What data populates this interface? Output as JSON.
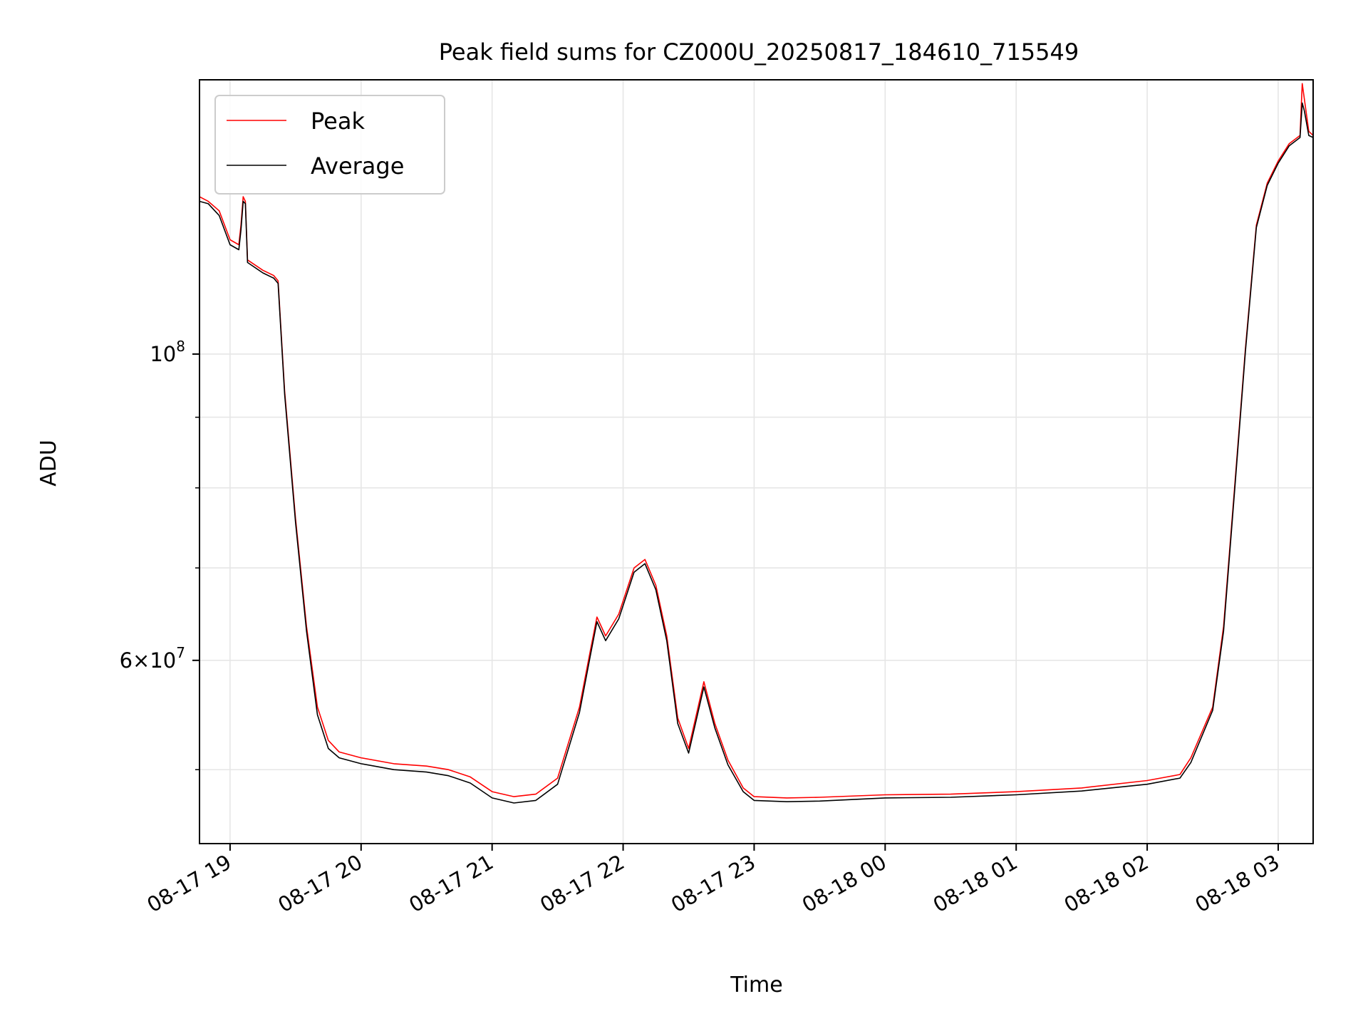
{
  "chart_data": {
    "type": "line",
    "title": "Peak field sums for CZ000U_20250817_184610_715549",
    "xlabel": "Time",
    "ylabel": "ADU",
    "yscale": "log",
    "ylim": [
      44200000,
      158000000
    ],
    "xlim": [
      "2025-08-17 18:46",
      "2025-08-18 03:16"
    ],
    "grid": true,
    "legend_position": "upper-left",
    "x_ticks": [
      {
        "t": "2025-08-17 19:00",
        "label": "08-17 19"
      },
      {
        "t": "2025-08-17 20:00",
        "label": "08-17 20"
      },
      {
        "t": "2025-08-17 21:00",
        "label": "08-17 21"
      },
      {
        "t": "2025-08-17 22:00",
        "label": "08-17 22"
      },
      {
        "t": "2025-08-17 23:00",
        "label": "08-17 23"
      },
      {
        "t": "2025-08-18 00:00",
        "label": "08-18 00"
      },
      {
        "t": "2025-08-18 01:00",
        "label": "08-18 01"
      },
      {
        "t": "2025-08-18 02:00",
        "label": "08-18 02"
      },
      {
        "t": "2025-08-18 03:00",
        "label": "08-18 03"
      }
    ],
    "y_major_ticks": [
      {
        "v": 60000000,
        "mant": "6",
        "exp": "7"
      },
      {
        "v": 100000000,
        "mant": "",
        "exp": "8"
      }
    ],
    "y_minor_ticks": [
      50000000,
      70000000,
      80000000,
      90000000
    ],
    "x_times": [
      "2025-08-17 18:46",
      "2025-08-17 18:50",
      "2025-08-17 18:55",
      "2025-08-17 19:00",
      "2025-08-17 19:04",
      "2025-08-17 19:05",
      "2025-08-17 19:06",
      "2025-08-17 19:07",
      "2025-08-17 19:08",
      "2025-08-17 19:15",
      "2025-08-17 19:20",
      "2025-08-17 19:22",
      "2025-08-17 19:25",
      "2025-08-17 19:30",
      "2025-08-17 19:35",
      "2025-08-17 19:40",
      "2025-08-17 19:45",
      "2025-08-17 19:50",
      "2025-08-17 20:00",
      "2025-08-17 20:15",
      "2025-08-17 20:30",
      "2025-08-17 20:40",
      "2025-08-17 20:50",
      "2025-08-17 21:00",
      "2025-08-17 21:10",
      "2025-08-17 21:20",
      "2025-08-17 21:30",
      "2025-08-17 21:40",
      "2025-08-17 21:45",
      "2025-08-17 21:48",
      "2025-08-17 21:52",
      "2025-08-17 21:58",
      "2025-08-17 22:05",
      "2025-08-17 22:10",
      "2025-08-17 22:15",
      "2025-08-17 22:20",
      "2025-08-17 22:25",
      "2025-08-17 22:30",
      "2025-08-17 22:37",
      "2025-08-17 22:42",
      "2025-08-17 22:48",
      "2025-08-17 22:55",
      "2025-08-17 23:00",
      "2025-08-17 23:15",
      "2025-08-17 23:30",
      "2025-08-18 00:00",
      "2025-08-18 00:30",
      "2025-08-18 01:00",
      "2025-08-18 01:30",
      "2025-08-18 02:00",
      "2025-08-18 02:15",
      "2025-08-18 02:20",
      "2025-08-18 02:30",
      "2025-08-18 02:35",
      "2025-08-18 02:40",
      "2025-08-18 02:45",
      "2025-08-18 02:50",
      "2025-08-18 02:55",
      "2025-08-18 03:00",
      "2025-08-18 03:05",
      "2025-08-18 03:10",
      "2025-08-18 03:11",
      "2025-08-18 03:12",
      "2025-08-18 03:14",
      "2025-08-18 03:16"
    ],
    "series": [
      {
        "name": "Peak",
        "color": "#ff0000",
        "values": [
          130000000,
          129000000,
          127000000,
          121000000,
          120000000,
          124000000,
          130000000,
          129000000,
          117000000,
          115000000,
          114000000,
          113000000,
          94000000,
          76000000,
          63500000,
          55500000,
          52500000,
          51500000,
          51000000,
          50500000,
          50300000,
          50000000,
          49400000,
          48200000,
          47800000,
          48000000,
          49300000,
          55500000,
          61000000,
          64500000,
          62500000,
          64800000,
          70000000,
          71000000,
          68000000,
          62500000,
          54500000,
          51800000,
          57900000,
          54000000,
          50800000,
          48500000,
          47800000,
          47700000,
          47750000,
          47950000,
          48000000,
          48200000,
          48500000,
          49100000,
          49600000,
          51000000,
          55500000,
          63500000,
          80000000,
          101000000,
          124000000,
          133000000,
          138000000,
          142000000,
          144000000,
          157000000,
          153000000,
          145000000,
          144000000
        ]
      },
      {
        "name": "Average",
        "color": "#000000",
        "values": [
          129000000,
          128500000,
          126000000,
          120000000,
          119000000,
          123000000,
          129000000,
          128500000,
          116500000,
          114500000,
          113500000,
          112500000,
          93500000,
          75500000,
          63000000,
          54800000,
          51800000,
          51000000,
          50500000,
          50000000,
          49800000,
          49500000,
          48900000,
          47700000,
          47300000,
          47500000,
          48800000,
          55000000,
          60500000,
          64000000,
          62000000,
          64300000,
          69500000,
          70500000,
          67500000,
          62000000,
          54000000,
          51400000,
          57400000,
          53600000,
          50400000,
          48200000,
          47500000,
          47400000,
          47450000,
          47700000,
          47750000,
          47950000,
          48250000,
          48800000,
          49300000,
          50600000,
          55200000,
          63000000,
          79500000,
          100500000,
          123500000,
          132500000,
          137500000,
          141500000,
          143500000,
          152000000,
          150000000,
          144000000,
          143500000
        ]
      }
    ]
  }
}
